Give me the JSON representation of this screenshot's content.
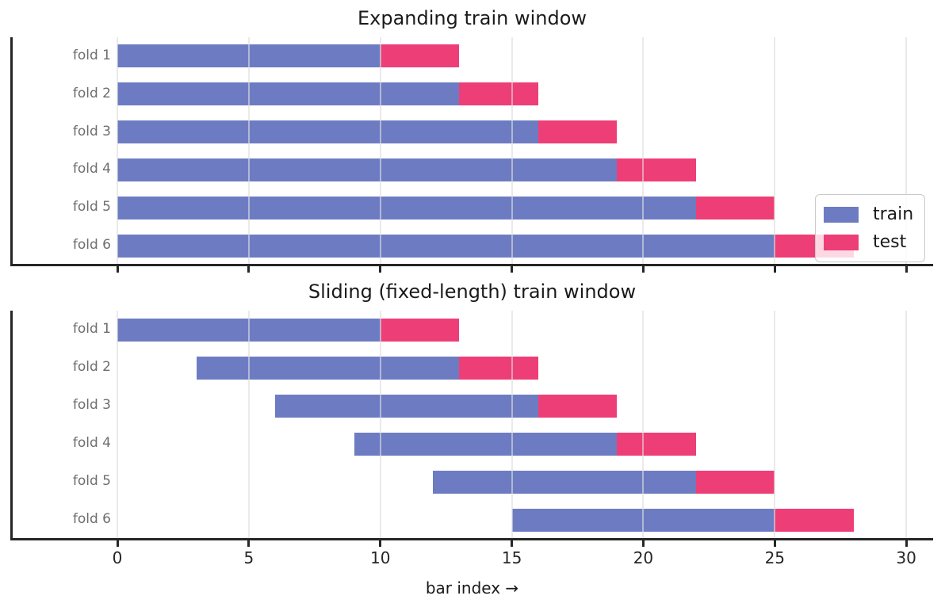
{
  "figure": {
    "background": "#ffffff",
    "xlabel": "bar index →",
    "legend": {
      "entries": [
        {
          "label": "train",
          "color": "#6d7cc2"
        },
        {
          "label": "test",
          "color": "#ee3e77"
        }
      ]
    },
    "colors": {
      "train": "#6d7cc2",
      "test": "#ee3e77",
      "grid": "#dddddd",
      "spine": "#262626",
      "tick_label": "#262626",
      "fold_label": "#6e6e6e",
      "title": "#1a1a1a"
    }
  },
  "chart_data": [
    {
      "type": "bar",
      "orientation": "horizontal",
      "title": "Expanding train window",
      "categories": [
        "fold 1",
        "fold 2",
        "fold 3",
        "fold 4",
        "fold 5",
        "fold 6"
      ],
      "series": [
        {
          "name": "train",
          "color": "#6d7cc2",
          "ranges": [
            [
              0,
              10
            ],
            [
              0,
              13
            ],
            [
              0,
              16
            ],
            [
              0,
              19
            ],
            [
              0,
              22
            ],
            [
              0,
              25
            ]
          ]
        },
        {
          "name": "test",
          "color": "#ee3e77",
          "ranges": [
            [
              10,
              13
            ],
            [
              13,
              16
            ],
            [
              16,
              19
            ],
            [
              19,
              22
            ],
            [
              22,
              25
            ],
            [
              25,
              28
            ]
          ]
        }
      ],
      "xlim": [
        -4.04,
        31.02
      ],
      "xticks": [
        0,
        5,
        10,
        15,
        20,
        25,
        30
      ],
      "show_x_tick_labels": false,
      "grid": true,
      "legend_position": "lower right"
    },
    {
      "type": "bar",
      "orientation": "horizontal",
      "title": "Sliding (fixed-length) train window",
      "categories": [
        "fold 1",
        "fold 2",
        "fold 3",
        "fold 4",
        "fold 5",
        "fold 6"
      ],
      "series": [
        {
          "name": "train",
          "color": "#6d7cc2",
          "ranges": [
            [
              0,
              10
            ],
            [
              3,
              13
            ],
            [
              6,
              16
            ],
            [
              9,
              19
            ],
            [
              12,
              22
            ],
            [
              15,
              25
            ]
          ]
        },
        {
          "name": "test",
          "color": "#ee3e77",
          "ranges": [
            [
              10,
              13
            ],
            [
              13,
              16
            ],
            [
              16,
              19
            ],
            [
              19,
              22
            ],
            [
              22,
              25
            ],
            [
              25,
              28
            ]
          ]
        }
      ],
      "xlim": [
        -4.04,
        31.02
      ],
      "xticks": [
        0,
        5,
        10,
        15,
        20,
        25,
        30
      ],
      "show_x_tick_labels": true,
      "grid": true,
      "legend_position": null
    }
  ],
  "xlabel": "bar index →"
}
